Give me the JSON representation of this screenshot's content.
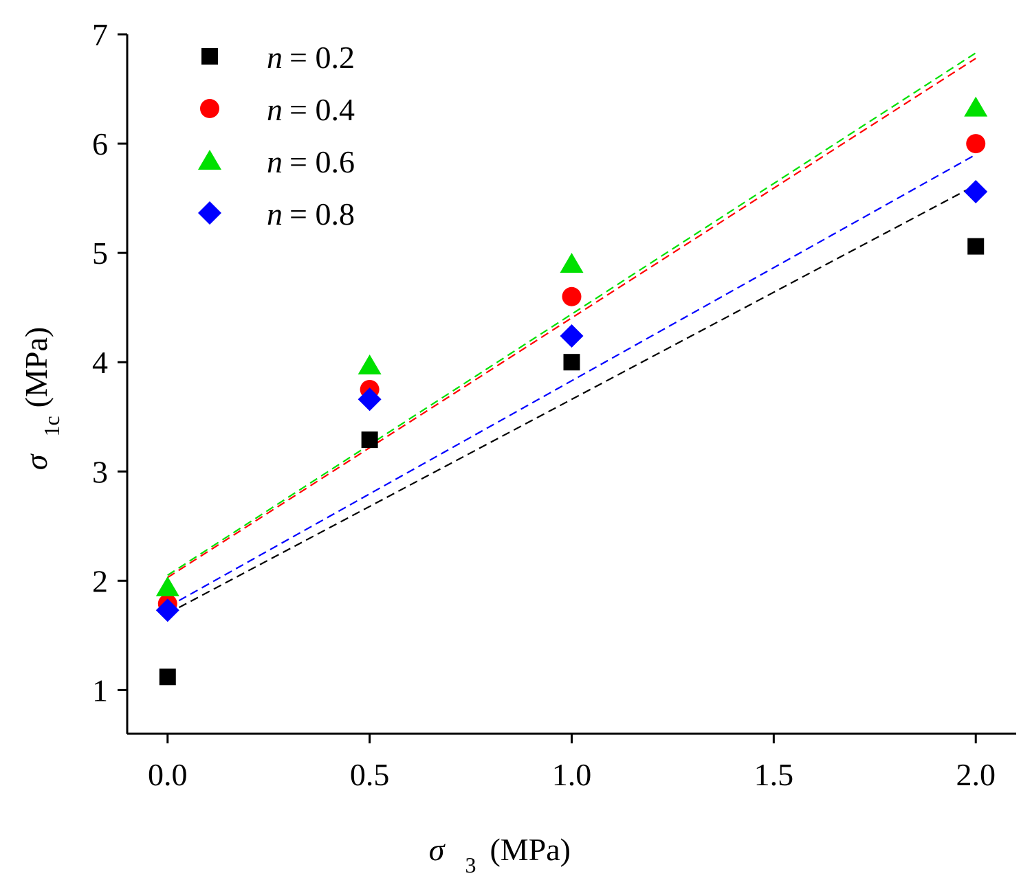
{
  "chart_data": {
    "type": "scatter",
    "title": "",
    "xlabel": {
      "symbol": "σ",
      "subscript": "3",
      "unit": "(MPa)"
    },
    "ylabel": {
      "symbol": "σ",
      "subscript": "1c",
      "unit": "(MPa)"
    },
    "xlim": [
      -0.1,
      2.1
    ],
    "ylim": [
      0.6,
      7
    ],
    "xticks": [
      0.0,
      0.5,
      1.0,
      1.5,
      2.0
    ],
    "xtick_labels": [
      "0.0",
      "0.5",
      "1.0",
      "1.5",
      "2.0"
    ],
    "yticks": [
      1,
      2,
      3,
      4,
      5,
      6,
      7
    ],
    "ytick_labels": [
      "1",
      "2",
      "3",
      "4",
      "5",
      "6",
      "7"
    ],
    "grid": false,
    "legend_position": "top-left",
    "x": [
      0.0,
      0.5,
      1.0,
      2.0
    ],
    "series": [
      {
        "name": "n = 0.2",
        "var": "n",
        "value": "= 0.2",
        "marker": "square",
        "color": "#000000",
        "values": [
          1.12,
          3.29,
          4.0,
          5.06
        ],
        "fit": [
          1.7,
          5.62
        ]
      },
      {
        "name": "n = 0.4",
        "var": "n",
        "value": "= 0.4",
        "marker": "circle",
        "color": "#ff0000",
        "values": [
          1.79,
          3.75,
          4.6,
          6.0
        ],
        "fit": [
          2.03,
          6.78
        ]
      },
      {
        "name": "n = 0.6",
        "var": "n",
        "value": "= 0.6",
        "marker": "triangle",
        "color": "#00e000",
        "values": [
          1.94,
          3.97,
          4.9,
          6.33
        ],
        "fit": [
          2.05,
          6.83
        ]
      },
      {
        "name": "n = 0.8",
        "var": "n",
        "value": "= 0.8",
        "marker": "diamond",
        "color": "#0000ff",
        "values": [
          1.73,
          3.66,
          4.24,
          5.56
        ],
        "fit": [
          1.76,
          5.9
        ]
      }
    ]
  }
}
